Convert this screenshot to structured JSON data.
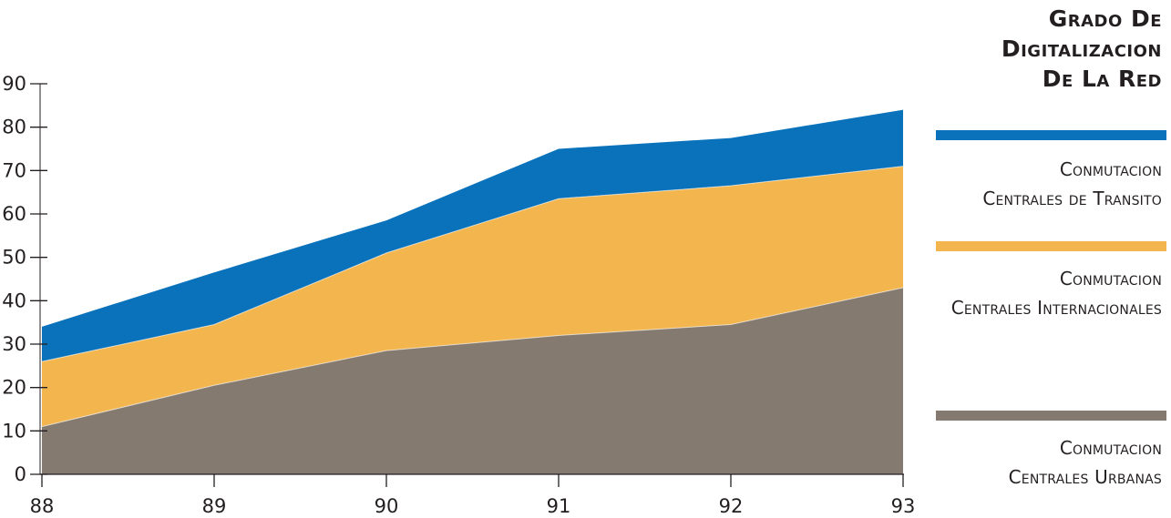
{
  "legend": {
    "title_lines": [
      "Grado De",
      "Digitalizacion",
      "De La Red"
    ],
    "items": [
      {
        "line1": "Conmutacion",
        "line2": "Centrales de Transito",
        "color": "#0a72bb"
      },
      {
        "line1": "Conmutacion",
        "line2": "Centrales Internacionales",
        "color": "#f3b64f"
      },
      {
        "line1": "Conmutacion",
        "line2": "Centrales Urbanas",
        "color": "#847a70"
      }
    ]
  },
  "chart_data": {
    "type": "area",
    "stacked": true,
    "title": "Grado De Digitalizacion De La Red",
    "xlabel": "",
    "ylabel": "",
    "categories": [
      "88",
      "89",
      "90",
      "91",
      "92",
      "93"
    ],
    "y_ticks": [
      "0",
      "10",
      "20",
      "30",
      "40",
      "50",
      "60",
      "70",
      "80",
      "90"
    ],
    "ylim": [
      0,
      90
    ],
    "grid": false,
    "legend_position": "right",
    "series": [
      {
        "name": "Conmutacion Centrales Urbanas",
        "values": [
          11,
          20.5,
          28.5,
          32,
          34.5,
          43
        ],
        "color": "#847a70"
      },
      {
        "name": "Conmutacion Centrales Internacionales",
        "values": [
          15,
          14,
          22.5,
          31.5,
          32,
          28
        ],
        "color": "#f3b64f"
      },
      {
        "name": "Conmutacion Centrales de Transito",
        "values": [
          8,
          12,
          7.5,
          11.5,
          11,
          13
        ],
        "color": "#0a72bb"
      }
    ]
  }
}
